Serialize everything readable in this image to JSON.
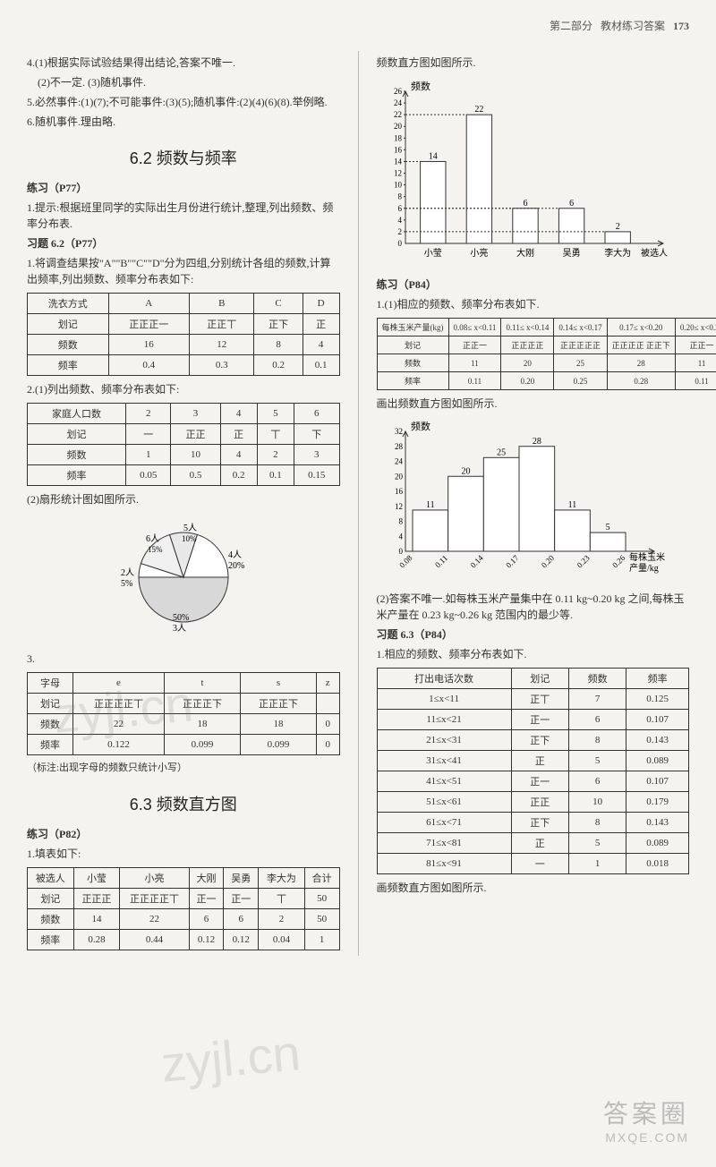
{
  "header": {
    "section": "第二部分",
    "subtitle": "教材练习答案",
    "page": "173"
  },
  "left": {
    "q4": {
      "line1": "4.(1)根据实际试验结果得出结论,答案不唯一.",
      "line2": "(2)不一定. (3)随机事件."
    },
    "q5": "5.必然事件:(1)(7);不可能事件:(3)(5);随机事件:(2)(4)(6)(8).举例略.",
    "q6": "6.随机事件.理由略.",
    "sec62_title": "6.2  频数与频率",
    "p77_label": "练习（P77）",
    "p77_q1": "1.提示:根据班里同学的实际出生月份进行统计,整理,列出频数、频率分布表.",
    "ex62_label": "习题 6.2（P77）",
    "ex62_q1_intro": "1.将调查结果按\"A\"\"B\"\"C\"\"D\"分为四组,分别统计各组的频数,计算出频率,列出频数、频率分布表如下:",
    "table1": {
      "headers": [
        "洗衣方式",
        "A",
        "B",
        "C",
        "D"
      ],
      "rows": [
        [
          "划记",
          "正正正一",
          "正正丅",
          "正下",
          "正"
        ],
        [
          "频数",
          "16",
          "12",
          "8",
          "4"
        ],
        [
          "频率",
          "0.4",
          "0.3",
          "0.2",
          "0.1"
        ]
      ]
    },
    "q2_intro": "2.(1)列出频数、频率分布表如下:",
    "table2": {
      "headers": [
        "家庭人口数",
        "2",
        "3",
        "4",
        "5",
        "6"
      ],
      "rows": [
        [
          "划记",
          "一",
          "正正",
          "正",
          "丅",
          "下"
        ],
        [
          "频数",
          "1",
          "10",
          "4",
          "2",
          "3"
        ],
        [
          "频率",
          "0.05",
          "0.5",
          "0.2",
          "0.1",
          "0.15"
        ]
      ]
    },
    "q2b": "(2)扇形统计图如图所示.",
    "pie": {
      "slices": [
        {
          "label": "2人 5%",
          "value": 5,
          "color": "#ffffff"
        },
        {
          "label": "3人 50%",
          "value": 50,
          "color": "#d0d0d0"
        },
        {
          "label": "4人 20%",
          "value": 20,
          "color": "#ffffff"
        },
        {
          "label": "5人 10%",
          "value": 10,
          "color": "#e8e8e8"
        },
        {
          "label": "6人 15%",
          "value": 15,
          "color": "#f0f0f0"
        }
      ],
      "labels": {
        "p2": "2人\n5%",
        "p3": "3人\n50%",
        "p4": "4人\n20%",
        "p5": "5人\n10%",
        "p6": "6人\n15%"
      }
    },
    "q3_label": "3.",
    "table3": {
      "headers": [
        "字母",
        "e",
        "t",
        "s",
        "z"
      ],
      "rows": [
        [
          "划记",
          "正正正正丅",
          "正正正下",
          "正正正下",
          ""
        ],
        [
          "频数",
          "22",
          "18",
          "18",
          "0"
        ],
        [
          "频率",
          "0.122",
          "0.099",
          "0.099",
          "0"
        ]
      ]
    },
    "q3_note": "（标注:出现字母的频数只统计小写）",
    "sec63_title": "6.3  频数直方图",
    "p82_label": "练习（P82）",
    "p82_q1": "1.填表如下:",
    "table4": {
      "headers": [
        "被选人",
        "小莹",
        "小亮",
        "大刚",
        "吴勇",
        "李大为",
        "合计"
      ],
      "rows": [
        [
          "划记",
          "正正正",
          "正正正正丅",
          "正一",
          "正一",
          "丅",
          "50"
        ],
        [
          "频数",
          "14",
          "22",
          "6",
          "6",
          "2",
          "50"
        ],
        [
          "频率",
          "0.28",
          "0.44",
          "0.12",
          "0.12",
          "0.04",
          "1"
        ]
      ]
    }
  },
  "right": {
    "histo1_intro": "频数直方图如图所示.",
    "histo1": {
      "ylabel": "频数",
      "ymax": 26,
      "ytick": 2,
      "categories": [
        "小莹",
        "小亮",
        "大刚",
        "吴勇",
        "李大为"
      ],
      "xlabel_end": "被选人",
      "values": [
        14,
        22,
        6,
        6,
        2
      ],
      "bar_color": "#ffffff",
      "border": "#333"
    },
    "p84_label": "练习（P84）",
    "p84_q1": "1.(1)相应的频数、频率分布表如下.",
    "table5": {
      "r1": [
        "每株玉米产量(kg)",
        "0.08≤ x<0.11",
        "0.11≤ x<0.14",
        "0.14≤ x<0.17",
        "0.17≤ x<0.20",
        "0.20≤ x<0.23",
        "0.23≤ x<0.26"
      ],
      "r2": [
        "划记",
        "正正一",
        "正正正正",
        "正正正正正",
        "正正正正 正正下",
        "正正一",
        "正"
      ],
      "r3": [
        "频数",
        "11",
        "20",
        "25",
        "28",
        "11",
        "5"
      ],
      "r4": [
        "频率",
        "0.11",
        "0.20",
        "0.25",
        "0.28",
        "0.11",
        "0.05"
      ]
    },
    "histo2_intro": "画出频数直方图如图所示.",
    "histo2": {
      "ylabel": "频数",
      "ymax": 32,
      "ytick": 4,
      "xlabels": [
        "0.08",
        "0.11",
        "0.14",
        "0.17",
        "0.20",
        "0.23",
        "0.26"
      ],
      "xlabel_text": "每株玉米\n产量/kg",
      "values": [
        11,
        20,
        25,
        28,
        11,
        5
      ],
      "bar_color": "#ffffff",
      "border": "#333"
    },
    "p84_q2": "(2)答案不唯一.如每株玉米产量集中在 0.11 kg~0.20 kg 之间,每株玉米产量在 0.23 kg~0.26 kg 范围内的最少等.",
    "ex63_label": "习题 6.3（P84）",
    "ex63_q1": "1.相应的频数、频率分布表如下.",
    "table6": {
      "headers": [
        "打出电话次数",
        "划记",
        "频数",
        "频率"
      ],
      "rows": [
        [
          "1≤x<11",
          "正丅",
          "7",
          "0.125"
        ],
        [
          "11≤x<21",
          "正一",
          "6",
          "0.107"
        ],
        [
          "21≤x<31",
          "正下",
          "8",
          "0.143"
        ],
        [
          "31≤x<41",
          "正",
          "5",
          "0.089"
        ],
        [
          "41≤x<51",
          "正一",
          "6",
          "0.107"
        ],
        [
          "51≤x<61",
          "正正",
          "10",
          "0.179"
        ],
        [
          "61≤x<71",
          "正下",
          "8",
          "0.143"
        ],
        [
          "71≤x<81",
          "正",
          "5",
          "0.089"
        ],
        [
          "81≤x<91",
          "一",
          "1",
          "0.018"
        ]
      ]
    },
    "histo3_intro": "画频数直方图如图所示."
  },
  "watermarks": {
    "wm1": "zyjl.cn",
    "wm2": "zyjl.cn",
    "footer1": "答案圈",
    "footer2": "MXQE.COM"
  }
}
